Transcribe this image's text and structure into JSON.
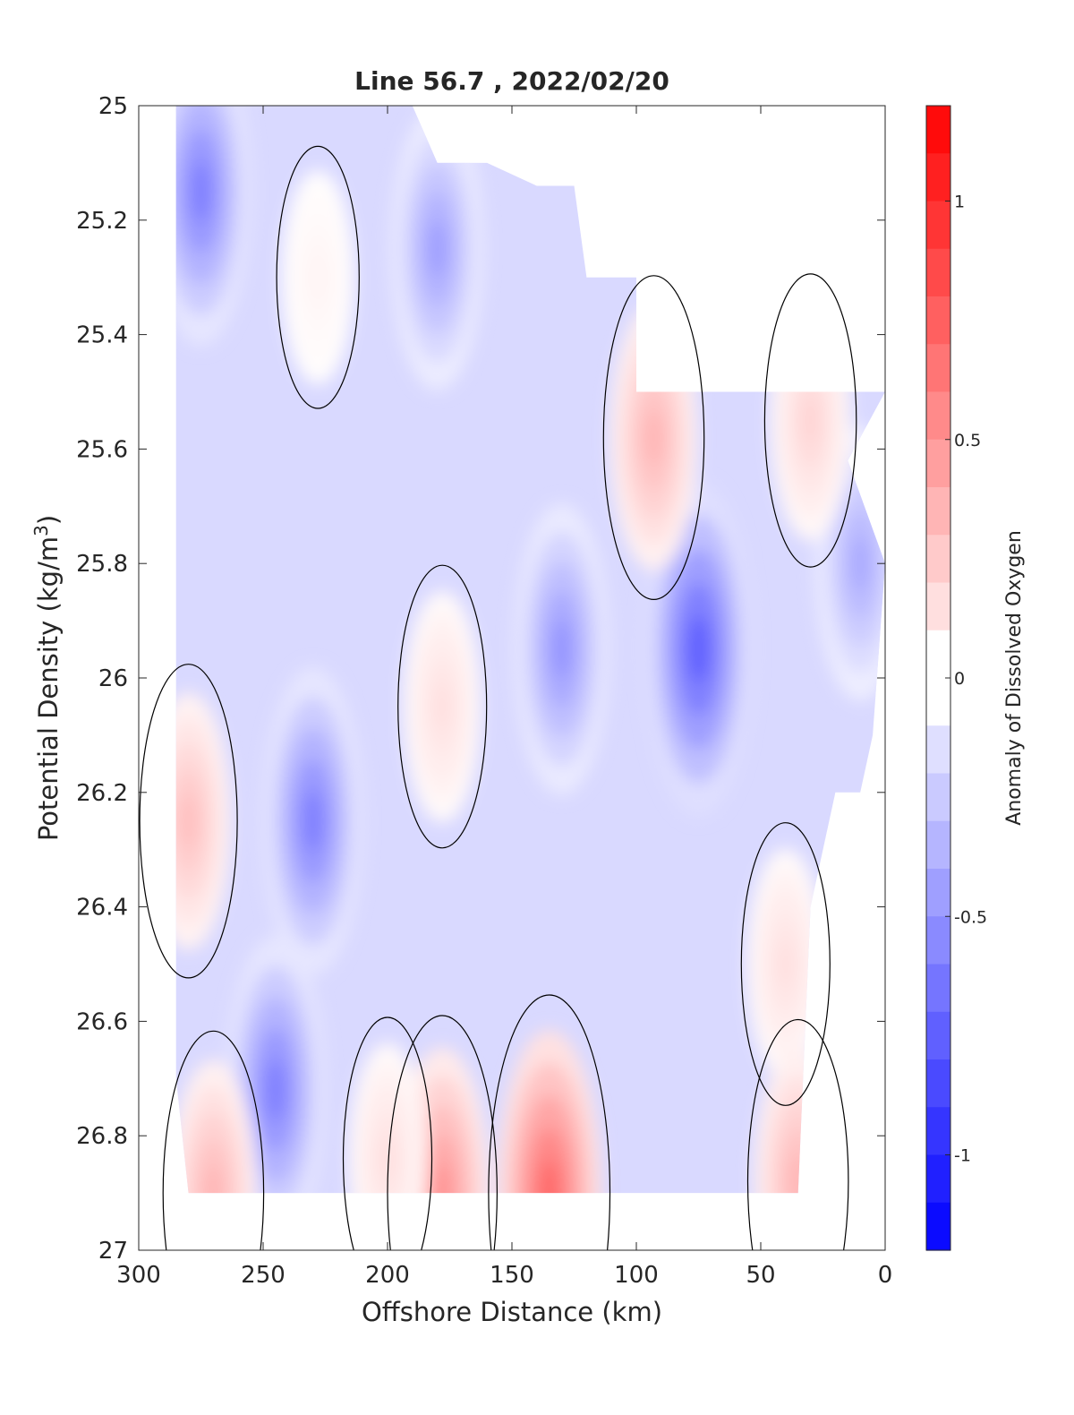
{
  "chart_data": {
    "type": "heatmap",
    "subtype": "filled-contour",
    "title": "Line 56.7 , 2022/02/20",
    "xlabel": "Offshore Distance (km)",
    "ylabel_main": "Potential Density (kg/m",
    "ylabel_sup": "3",
    "ylabel_close": ")",
    "colorbar_label": "Anomaly of Dissolved Oxygen",
    "xlim": [
      300,
      0
    ],
    "ylim": [
      25,
      27
    ],
    "x_reversed": true,
    "y_reversed": true,
    "xticks": [
      300,
      250,
      200,
      150,
      100,
      50,
      0
    ],
    "yticks": [
      25,
      25.2,
      25.4,
      25.6,
      25.8,
      26,
      26.2,
      26.4,
      26.6,
      26.8,
      27
    ],
    "ytick_labels": [
      "25",
      "25.2",
      "25.4",
      "25.6",
      "25.8",
      "26",
      "26.2",
      "26.4",
      "26.6",
      "26.8",
      "27"
    ],
    "colorbar_range": [
      -1.2,
      1.2
    ],
    "colorbar_step": 0.1,
    "colorbar_ticks": [
      1,
      0.5,
      0,
      -0.5,
      -1
    ],
    "colorbar_tick_labels": [
      "1",
      "0.5",
      "0",
      "-0.5",
      "-1"
    ],
    "zero_contour": "black line at anomaly 0",
    "grid": false,
    "colormap": "blue-white-red diverging",
    "colors": {
      "negative": "#0000ff",
      "zero": "#ffffff",
      "positive": "#ff0000",
      "axis": "#262626"
    },
    "features": [
      {
        "x": 275,
        "y": 25.15,
        "value": -0.6
      },
      {
        "x": 230,
        "y": 26.25,
        "value": -0.6
      },
      {
        "x": 245,
        "y": 26.72,
        "value": -0.6
      },
      {
        "x": 75,
        "y": 25.95,
        "value": -0.75
      },
      {
        "x": 130,
        "y": 25.95,
        "value": -0.5
      },
      {
        "x": 180,
        "y": 25.25,
        "value": -0.45
      },
      {
        "x": 10,
        "y": 25.8,
        "value": -0.4
      },
      {
        "x": 228,
        "y": 25.3,
        "value": 0.05
      },
      {
        "x": 178,
        "y": 26.05,
        "value": 0.15
      },
      {
        "x": 280,
        "y": 26.25,
        "value": 0.3
      },
      {
        "x": 93,
        "y": 25.58,
        "value": 0.35
      },
      {
        "x": 30,
        "y": 25.55,
        "value": 0.2
      },
      {
        "x": 40,
        "y": 26.5,
        "value": 0.15
      },
      {
        "x": 135,
        "y": 26.9,
        "value": 0.7
      },
      {
        "x": 178,
        "y": 26.9,
        "value": 0.5
      },
      {
        "x": 270,
        "y": 26.9,
        "value": 0.35
      },
      {
        "x": 200,
        "y": 26.84,
        "value": 0.15
      },
      {
        "x": 35,
        "y": 26.88,
        "value": 0.35
      }
    ],
    "boundary_top": [
      [
        285,
        25.0
      ],
      [
        190,
        25.0
      ],
      [
        180,
        25.1
      ],
      [
        160,
        25.1
      ],
      [
        140,
        25.14
      ],
      [
        125,
        25.14
      ],
      [
        120,
        25.3
      ],
      [
        100,
        25.3
      ],
      [
        100,
        25.5
      ],
      [
        0,
        25.5
      ]
    ],
    "boundary_right": [
      [
        0,
        25.5
      ],
      [
        15,
        25.62
      ],
      [
        0,
        25.8
      ],
      [
        5,
        26.1
      ],
      [
        10,
        26.2
      ],
      [
        20,
        26.2
      ],
      [
        30,
        26.4
      ],
      [
        35,
        26.9
      ]
    ],
    "boundary_bottom": [
      [
        35,
        26.9
      ],
      [
        280,
        26.9
      ],
      [
        285,
        26.7
      ],
      [
        285,
        25.0
      ]
    ]
  }
}
